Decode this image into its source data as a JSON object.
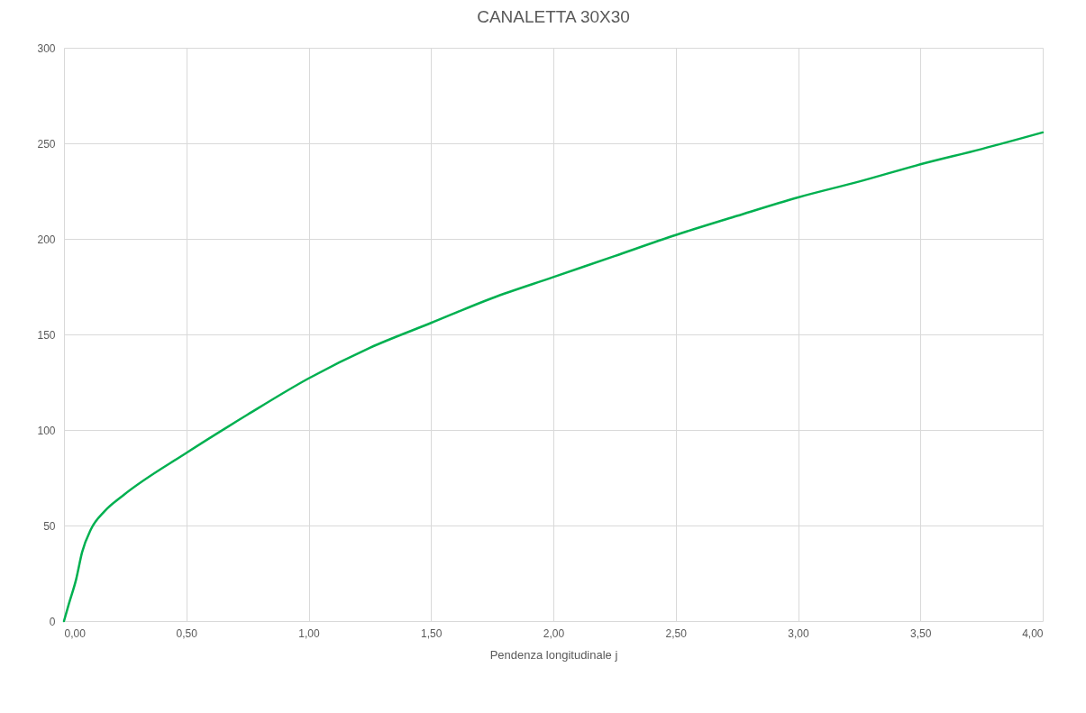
{
  "chart_data": {
    "type": "line",
    "title": "CANALETTA 30X30",
    "xlabel": "Pendenza longitudinale j",
    "x": [
      0,
      0.02,
      0.05,
      0.074,
      0.11,
      0.166,
      0.24,
      0.5,
      0.75,
      1.0,
      1.25,
      1.5,
      1.75,
      2.0,
      2.25,
      2.5,
      2.75,
      3.0,
      3.25,
      3.5,
      3.75,
      4.0
    ],
    "series": [
      {
        "color": "#00b050",
        "values": [
          0,
          9,
          22,
          36,
          48,
          57.5,
          65.6,
          88,
          108,
          127,
          143,
          156,
          169,
          180,
          191,
          202,
          212,
          221.7,
          230,
          239,
          247,
          255.7
        ]
      }
    ],
    "xlim": [
      0,
      4
    ],
    "ylim": [
      0,
      300
    ],
    "xticks": [
      {
        "value": 0,
        "label": "0,00"
      },
      {
        "value": 0.5,
        "label": "0,50"
      },
      {
        "value": 1,
        "label": "1,00"
      },
      {
        "value": 1.5,
        "label": "1,50"
      },
      {
        "value": 2,
        "label": "2,00"
      },
      {
        "value": 2.5,
        "label": "2,50"
      },
      {
        "value": 3,
        "label": "3,00"
      },
      {
        "value": 3.5,
        "label": "3,50"
      },
      {
        "value": 4,
        "label": "4,00"
      }
    ],
    "yticks": [
      0,
      50,
      100,
      150,
      200,
      250,
      300
    ],
    "grid": true,
    "line_style": "solid"
  }
}
